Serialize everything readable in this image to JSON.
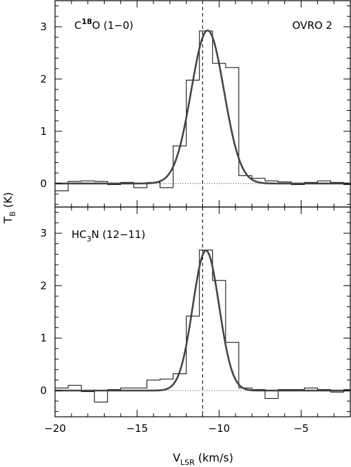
{
  "chart_data": {
    "type": "line",
    "xlabel": "V",
    "xlabel_sub": "LSR",
    "xlabel_unit": " (km/s)",
    "ylabel": "T",
    "ylabel_sub": "B",
    "ylabel_unit": " (K)",
    "xlim": [
      -20,
      -2
    ],
    "x_ticks": [
      -20,
      -15,
      -10,
      -5
    ],
    "x_tick_labels": [
      "−20",
      "−15",
      "−10",
      "−5"
    ],
    "reference_velocity": -11.0,
    "field_label": "OVRO 2",
    "panels": [
      {
        "line_label": {
          "prefix": "C",
          "sup": "18",
          "rest": "O (1−0)"
        },
        "ylim": [
          -0.45,
          3.5
        ],
        "y_ticks": [
          0,
          1,
          2,
          3
        ],
        "y_tick_labels": [
          "0",
          "1",
          "2",
          "3"
        ],
        "spectrum": {
          "bin_edges": [
            -20,
            -19.2,
            -18.4,
            -17.6,
            -16.8,
            -16.0,
            -15.2,
            -14.4,
            -13.6,
            -12.8,
            -12.0,
            -11.2,
            -10.4,
            -9.6,
            -8.8,
            -8.0,
            -7.2,
            -6.4,
            -5.6,
            -4.8,
            -4.0,
            -3.2,
            -2.4,
            -2.0
          ],
          "values": [
            -0.14,
            0.04,
            0.05,
            0.04,
            -0.02,
            0.02,
            -0.08,
            0.02,
            -0.08,
            0.72,
            1.98,
            2.92,
            2.3,
            2.22,
            0.15,
            0.1,
            0.05,
            0.03,
            -0.02,
            0.02,
            0.05,
            0.02,
            -0.02
          ]
        },
        "fit": {
          "amplitude": 2.93,
          "center": -10.7,
          "sigma": 1.0
        }
      },
      {
        "line_label": {
          "prefix": "HC",
          "sub": "3",
          "rest": "N (12−11)"
        },
        "ylim": [
          -0.5,
          3.5
        ],
        "y_ticks": [
          0,
          1,
          2,
          3
        ],
        "y_tick_labels": [
          "0",
          "1",
          "2",
          "3"
        ],
        "spectrum": {
          "bin_edges": [
            -20,
            -19.2,
            -18.4,
            -17.6,
            -16.8,
            -16.0,
            -15.2,
            -14.4,
            -13.6,
            -12.8,
            -12.0,
            -11.2,
            -10.4,
            -9.6,
            -8.8,
            -8.0,
            -7.2,
            -6.4,
            -5.6,
            -4.8,
            -4.0,
            -3.2,
            -2.4,
            -2.0
          ],
          "values": [
            0.05,
            0.1,
            -0.02,
            -0.22,
            0.02,
            0.05,
            0.05,
            0.2,
            0.22,
            0.32,
            1.42,
            2.68,
            2.1,
            0.92,
            0.05,
            0.02,
            -0.15,
            0.02,
            0.02,
            0.05,
            0.02,
            -0.03,
            0.02
          ]
        },
        "fit": {
          "amplitude": 2.67,
          "center": -10.8,
          "sigma": 0.8
        }
      }
    ]
  }
}
